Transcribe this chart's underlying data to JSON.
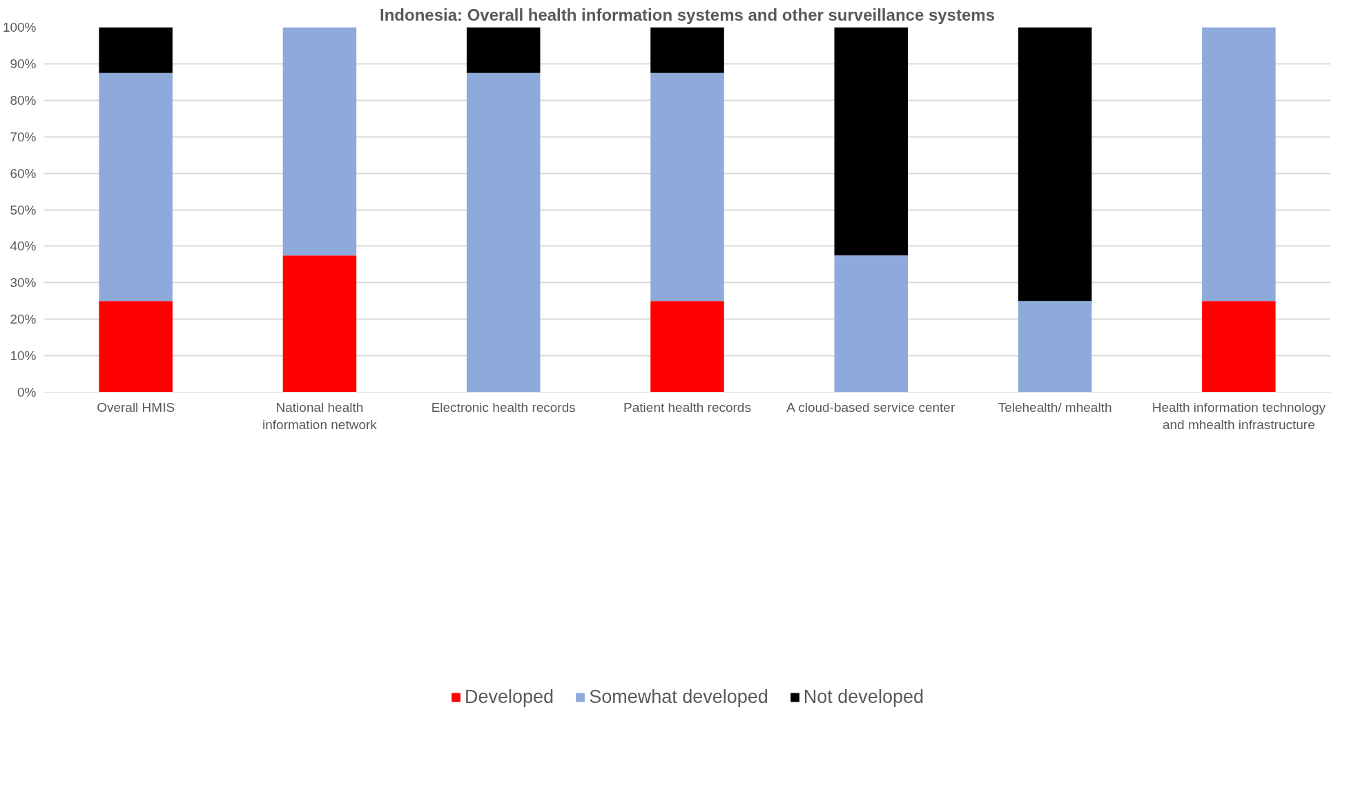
{
  "chart_data": {
    "type": "bar",
    "title": "Indonesia: Overall health information systems and other surveillance systems",
    "categories": [
      "Overall HMIS",
      "National health information network",
      "Electronic health records",
      "Patient health records",
      "A cloud-based service center",
      "Telehealth/ mhealth",
      "Health information technology and mhealth infrastructure"
    ],
    "series": [
      {
        "name": "Developed",
        "color": "#ff0000",
        "values": [
          25,
          37.5,
          0,
          25,
          0,
          0,
          25
        ]
      },
      {
        "name": "Somewhat developed",
        "color": "#8eaadb",
        "values": [
          62.5,
          62.5,
          87.5,
          62.5,
          37.5,
          25,
          75
        ]
      },
      {
        "name": "Not developed",
        "color": "#000000",
        "values": [
          12.5,
          0,
          12.5,
          12.5,
          62.5,
          75,
          0
        ]
      }
    ],
    "stacked": true,
    "ylim": [
      0,
      100
    ],
    "yticks": [
      {
        "value": 0,
        "label": "0%"
      },
      {
        "value": 10,
        "label": "10%"
      },
      {
        "value": 20,
        "label": "20%"
      },
      {
        "value": 30,
        "label": "30%"
      },
      {
        "value": 40,
        "label": "40%"
      },
      {
        "value": 50,
        "label": "50%"
      },
      {
        "value": 60,
        "label": "60%"
      },
      {
        "value": 70,
        "label": "70%"
      },
      {
        "value": 80,
        "label": "80%"
      },
      {
        "value": 90,
        "label": "90%"
      },
      {
        "value": 100,
        "label": "100%"
      }
    ],
    "grid": "y",
    "legend": "bottom"
  }
}
